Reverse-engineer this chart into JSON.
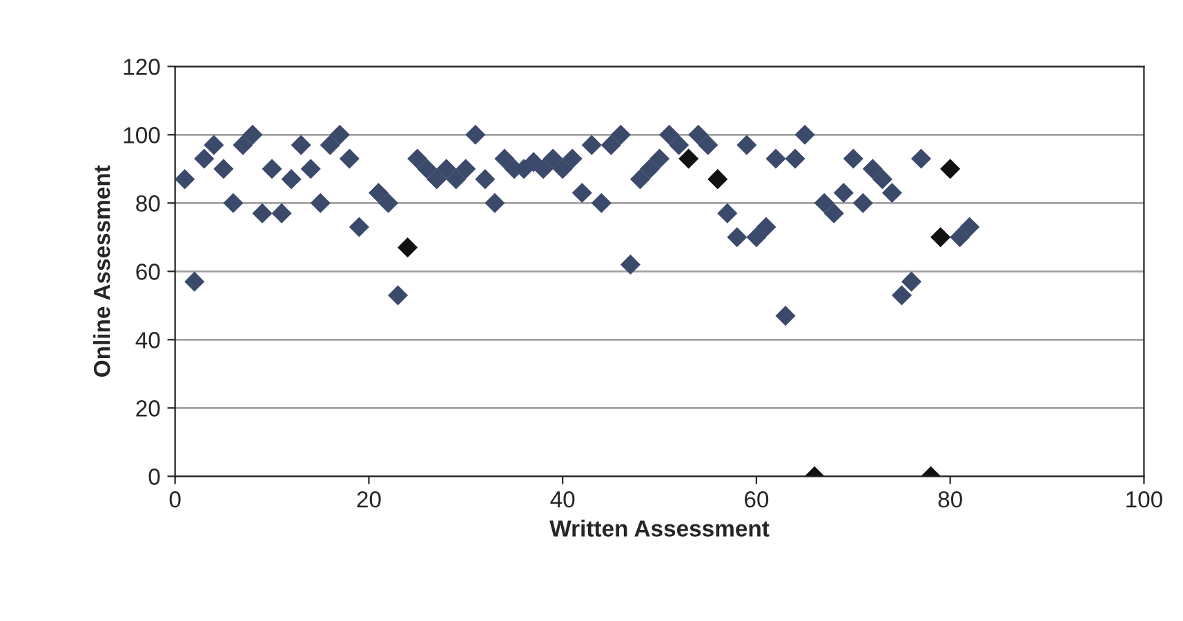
{
  "chart_data": {
    "type": "scatter",
    "xlabel": "Written Assessment",
    "ylabel": "Online Assessment",
    "x": [
      1,
      2,
      3,
      4,
      5,
      6,
      7,
      8,
      9,
      10,
      11,
      12,
      13,
      14,
      15,
      16,
      17,
      18,
      19,
      21,
      22,
      23,
      24,
      25,
      26,
      27,
      28,
      29,
      30,
      31,
      32,
      33,
      34,
      35,
      36,
      37,
      38,
      39,
      40,
      41,
      42,
      43,
      44,
      45,
      46,
      47,
      48,
      49,
      50,
      51,
      52,
      53,
      54,
      55,
      56,
      57,
      58,
      59,
      60,
      61,
      62,
      63,
      64,
      65,
      66,
      67,
      68,
      69,
      70,
      71,
      72,
      73,
      74,
      75,
      76,
      77,
      78,
      79,
      80,
      81,
      82
    ],
    "values": [
      87,
      57,
      93,
      97,
      90,
      80,
      97,
      100,
      77,
      90,
      77,
      87,
      97,
      90,
      80,
      97,
      100,
      93,
      73,
      83,
      80,
      53,
      67,
      93,
      90,
      87,
      90,
      87,
      90,
      100,
      87,
      80,
      93,
      90,
      90,
      92,
      90,
      93,
      90,
      93,
      83,
      97,
      80,
      97,
      100,
      62,
      87,
      90,
      93,
      100,
      97,
      93,
      100,
      97,
      87,
      77,
      70,
      97,
      70,
      73,
      93,
      47,
      93,
      100,
      0,
      80,
      77,
      83,
      93,
      80,
      90,
      87,
      83,
      53,
      57,
      93,
      0,
      70,
      90,
      70,
      73
    ],
    "colors": [
      "#3b4a6b",
      "#3b4a6b",
      "#3b4a6b",
      "#3b4a6b",
      "#3b4a6b",
      "#3b4a6b",
      "#3b4a6b",
      "#3b4a6b",
      "#3b4a6b",
      "#3b4a6b",
      "#3b4a6b",
      "#3b4a6b",
      "#3b4a6b",
      "#3b4a6b",
      "#3b4a6b",
      "#3b4a6b",
      "#3b4a6b",
      "#3b4a6b",
      "#3b4a6b",
      "#3b4a6b",
      "#3b4a6b",
      "#3b4a6b",
      "#111111",
      "#3b4a6b",
      "#3b4a6b",
      "#3b4a6b",
      "#3b4a6b",
      "#3b4a6b",
      "#3b4a6b",
      "#3b4a6b",
      "#3b4a6b",
      "#3b4a6b",
      "#3b4a6b",
      "#3b4a6b",
      "#3b4a6b",
      "#3b4a6b",
      "#3b4a6b",
      "#3b4a6b",
      "#3b4a6b",
      "#3b4a6b",
      "#3b4a6b",
      "#3b4a6b",
      "#3b4a6b",
      "#3b4a6b",
      "#3b4a6b",
      "#3b4a6b",
      "#3b4a6b",
      "#3b4a6b",
      "#3b4a6b",
      "#3b4a6b",
      "#3b4a6b",
      "#111111",
      "#3b4a6b",
      "#3b4a6b",
      "#111111",
      "#3b4a6b",
      "#3b4a6b",
      "#3b4a6b",
      "#3b4a6b",
      "#3b4a6b",
      "#3b4a6b",
      "#3b4a6b",
      "#3b4a6b",
      "#3b4a6b",
      "#111111",
      "#3b4a6b",
      "#3b4a6b",
      "#3b4a6b",
      "#3b4a6b",
      "#3b4a6b",
      "#3b4a6b",
      "#3b4a6b",
      "#3b4a6b",
      "#3b4a6b",
      "#3b4a6b",
      "#3b4a6b",
      "#111111",
      "#111111",
      "#111111",
      "#3b4a6b",
      "#3b4a6b"
    ],
    "marker": "diamond",
    "xlim": [
      0,
      100
    ],
    "xticks": [
      0,
      20,
      40,
      60,
      80,
      100
    ],
    "ylim": [
      0,
      120
    ],
    "yticks": [
      0,
      20,
      40,
      60,
      80,
      100,
      120
    ],
    "grid": "y"
  }
}
